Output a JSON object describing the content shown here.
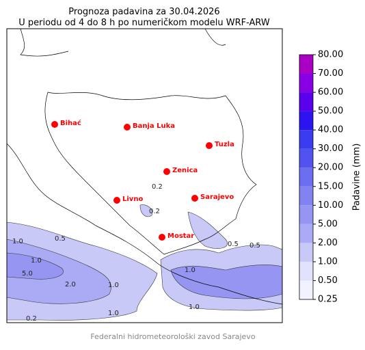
{
  "title": "Prognoza padavina za 30.04.2026",
  "subtitle": "U periodu od 4 do 8 h po numeričkom modelu WRF-ARW",
  "cities": [
    "Bihać",
    "Banja Luka",
    "Tuzla",
    "Zenica",
    "Livno",
    "Sarajevo",
    "Mostar"
  ],
  "city_color": "#ff0000",
  "contour_labels": [
    "1.0",
    "0.5",
    "1.0",
    "5.0",
    "2.0",
    "1.0",
    "1.0",
    "0.2",
    "1.0",
    "1.0",
    "0.5",
    "0.2",
    "0.2",
    "0.5"
  ],
  "colorbar": {
    "label": "Padavine (mm)",
    "ticks": [
      {
        "value": 0.25,
        "label": "0.25"
      },
      {
        "value": 0.5,
        "label": "0.50"
      },
      {
        "value": 1,
        "label": "1.00"
      },
      {
        "value": 2,
        "label": "2.00"
      },
      {
        "value": 5,
        "label": "5.00"
      },
      {
        "value": 10,
        "label": "10.00"
      },
      {
        "value": 15,
        "label": "15.00"
      },
      {
        "value": 20,
        "label": "20.00"
      },
      {
        "value": 30,
        "label": "30.00"
      },
      {
        "value": 40,
        "label": "40.00"
      },
      {
        "value": 50,
        "label": "50.00"
      },
      {
        "value": 60,
        "label": "60.00"
      },
      {
        "value": 70,
        "label": "70.00"
      },
      {
        "value": 80,
        "label": "80.00"
      }
    ],
    "colors": [
      "#f2f2ff",
      "#e2e2fc",
      "#c9c9f8",
      "#aaaaf5",
      "#9696f2",
      "#8282f0",
      "#6c6cee",
      "#5252ee",
      "#3b3bef",
      "#2c14f0",
      "#5a00ec",
      "#8800e4",
      "#aa00c4"
    ]
  },
  "footer": "Federalni hidrometeorološki zavod Sarajevo"
}
